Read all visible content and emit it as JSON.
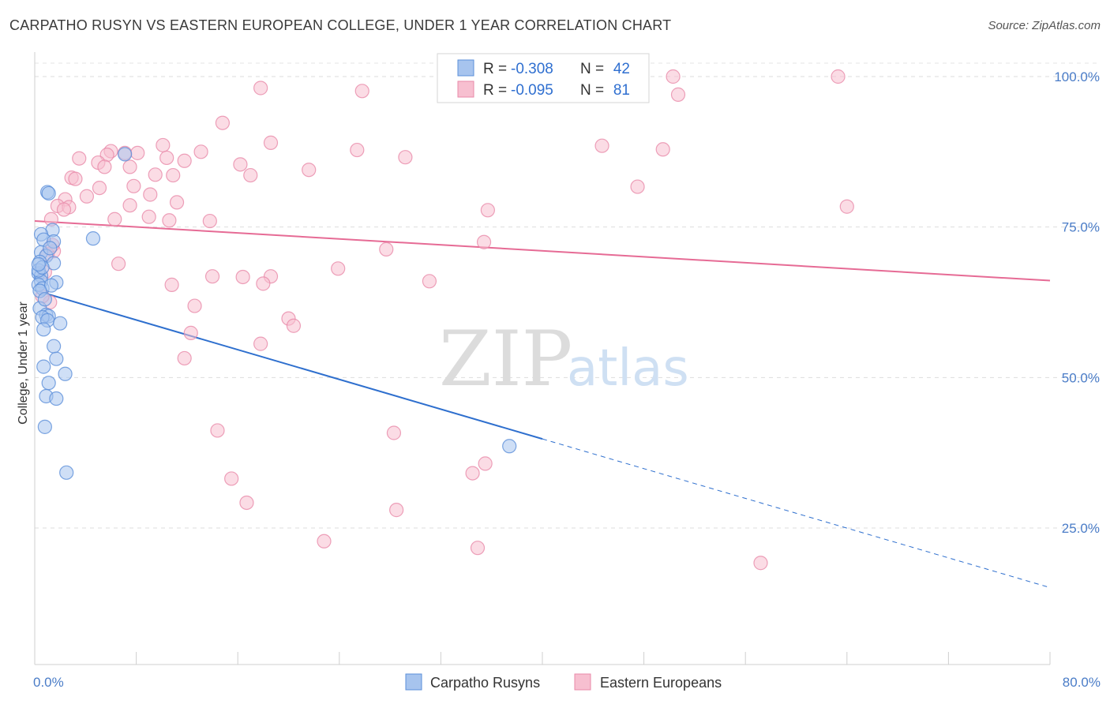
{
  "header": {
    "title": "CARPATHO RUSYN VS EASTERN EUROPEAN COLLEGE, UNDER 1 YEAR CORRELATION CHART",
    "source": "Source: ZipAtlas.com"
  },
  "watermark": {
    "zip": "ZIP",
    "atlas": "atlas"
  },
  "chart_data": {
    "type": "scatter",
    "title": "CARPATHO RUSYN VS EASTERN EUROPEAN COLLEGE, UNDER 1 YEAR CORRELATION CHART",
    "xlabel": "",
    "ylabel": "College, Under 1 year",
    "xlim": [
      0,
      80
    ],
    "ylim": [
      0,
      105
    ],
    "x_ticks": [
      {
        "value": 0,
        "label": "0.0%"
      },
      {
        "value": 80,
        "label": "80.0%"
      }
    ],
    "y_ticks": [
      {
        "value": 25,
        "label": "25.0%"
      },
      {
        "value": 50,
        "label": "50.0%"
      },
      {
        "value": 75,
        "label": "75.0%"
      },
      {
        "value": 100,
        "label": "100.0%"
      }
    ],
    "legend": {
      "position": "top-center",
      "entries": [
        {
          "name": "Carpatho Rusyns",
          "r_label": "R =",
          "r": "-0.308",
          "n_label": "N =",
          "n": "42"
        },
        {
          "name": "Eastern Europeans",
          "r_label": "R =",
          "r": "-0.095",
          "n_label": "N =",
          "n": "81"
        }
      ]
    },
    "colors": {
      "blue_fill": "#a7c4ee",
      "blue_stroke": "#5b8fd9",
      "blue_line": "#2e6fce",
      "pink_fill": "#f7bfd0",
      "pink_stroke": "#e98aa9",
      "pink_line": "#e66b95"
    },
    "series": [
      {
        "name": "Carpatho Rusyns",
        "trend": {
          "x0": 0,
          "y0": 64.5,
          "x1": 40,
          "y1": 39.8,
          "x_dash_end": 80
        },
        "points": [
          [
            7.1,
            87.1
          ],
          [
            1.0,
            80.8
          ],
          [
            1.1,
            80.6
          ],
          [
            4.6,
            73.1
          ],
          [
            1.4,
            74.5
          ],
          [
            0.5,
            73.8
          ],
          [
            0.7,
            72.9
          ],
          [
            1.5,
            72.6
          ],
          [
            0.5,
            70.8
          ],
          [
            0.9,
            70.2
          ],
          [
            0.4,
            69.2
          ],
          [
            1.5,
            69.0
          ],
          [
            0.3,
            67.3
          ],
          [
            0.5,
            66.9
          ],
          [
            0.5,
            66.0
          ],
          [
            1.7,
            65.8
          ],
          [
            0.3,
            65.4
          ],
          [
            0.6,
            64.8
          ],
          [
            1.3,
            65.3
          ],
          [
            0.4,
            61.5
          ],
          [
            0.9,
            60.4
          ],
          [
            1.1,
            60.2
          ],
          [
            0.6,
            60.0
          ],
          [
            1.0,
            59.5
          ],
          [
            2.0,
            59.0
          ],
          [
            0.7,
            58.0
          ],
          [
            1.5,
            55.2
          ],
          [
            1.7,
            53.1
          ],
          [
            0.7,
            51.8
          ],
          [
            2.4,
            50.6
          ],
          [
            1.1,
            49.1
          ],
          [
            0.9,
            46.9
          ],
          [
            1.7,
            46.5
          ],
          [
            0.8,
            41.8
          ],
          [
            2.5,
            34.2
          ],
          [
            37.4,
            38.6
          ],
          [
            0.3,
            67.8
          ],
          [
            0.6,
            68.3
          ],
          [
            0.3,
            68.8
          ],
          [
            1.2,
            71.5
          ],
          [
            0.4,
            64.4
          ],
          [
            0.8,
            63.0
          ]
        ]
      },
      {
        "name": "Eastern Europeans",
        "trend": {
          "x0": 0,
          "y0": 76.0,
          "x1": 80,
          "y1": 66.1
        },
        "points": [
          [
            33.6,
            100.0
          ],
          [
            50.3,
            100.0
          ],
          [
            63.3,
            100.0
          ],
          [
            17.8,
            98.1
          ],
          [
            25.8,
            97.6
          ],
          [
            50.7,
            97.0
          ],
          [
            14.8,
            92.3
          ],
          [
            18.6,
            89.0
          ],
          [
            10.1,
            88.6
          ],
          [
            44.7,
            88.5
          ],
          [
            7.1,
            87.3
          ],
          [
            8.1,
            87.3
          ],
          [
            6.0,
            87.6
          ],
          [
            5.7,
            87.0
          ],
          [
            13.1,
            87.5
          ],
          [
            25.4,
            87.8
          ],
          [
            49.5,
            87.9
          ],
          [
            3.5,
            86.4
          ],
          [
            10.4,
            86.5
          ],
          [
            29.2,
            86.6
          ],
          [
            11.8,
            86.0
          ],
          [
            5.0,
            85.7
          ],
          [
            16.2,
            85.4
          ],
          [
            5.5,
            85.0
          ],
          [
            7.5,
            85.0
          ],
          [
            21.6,
            84.5
          ],
          [
            9.5,
            83.7
          ],
          [
            10.9,
            83.6
          ],
          [
            17.0,
            83.6
          ],
          [
            2.9,
            83.2
          ],
          [
            3.2,
            83.0
          ],
          [
            7.8,
            81.8
          ],
          [
            5.1,
            81.5
          ],
          [
            47.5,
            81.7
          ],
          [
            9.1,
            80.4
          ],
          [
            4.1,
            80.1
          ],
          [
            2.4,
            79.6
          ],
          [
            11.2,
            79.1
          ],
          [
            7.5,
            78.6
          ],
          [
            1.8,
            78.5
          ],
          [
            2.7,
            78.3
          ],
          [
            35.7,
            77.8
          ],
          [
            64.0,
            78.4
          ],
          [
            2.3,
            77.9
          ],
          [
            9.0,
            76.7
          ],
          [
            1.3,
            76.3
          ],
          [
            6.3,
            76.3
          ],
          [
            10.6,
            76.1
          ],
          [
            13.8,
            76.0
          ],
          [
            35.4,
            72.5
          ],
          [
            27.7,
            71.3
          ],
          [
            1.5,
            71.0
          ],
          [
            1.0,
            70.5
          ],
          [
            6.6,
            68.9
          ],
          [
            23.9,
            68.1
          ],
          [
            14.0,
            66.8
          ],
          [
            16.4,
            66.7
          ],
          [
            18.6,
            66.8
          ],
          [
            31.1,
            66.0
          ],
          [
            10.8,
            65.4
          ],
          [
            18.0,
            65.6
          ],
          [
            12.6,
            61.9
          ],
          [
            20.0,
            59.8
          ],
          [
            20.4,
            58.6
          ],
          [
            12.3,
            57.4
          ],
          [
            17.8,
            55.6
          ],
          [
            11.8,
            53.2
          ],
          [
            14.4,
            41.2
          ],
          [
            28.3,
            40.8
          ],
          [
            35.5,
            35.7
          ],
          [
            15.5,
            33.2
          ],
          [
            34.5,
            34.1
          ],
          [
            16.7,
            29.2
          ],
          [
            28.5,
            28.0
          ],
          [
            22.8,
            22.8
          ],
          [
            34.9,
            21.7
          ],
          [
            57.2,
            19.2
          ],
          [
            1.2,
            62.5
          ],
          [
            0.6,
            63.5
          ],
          [
            0.8,
            67.5
          ],
          [
            1.4,
            72.0
          ]
        ]
      }
    ]
  },
  "bottom_legend": {
    "items": [
      {
        "label": "Carpatho Rusyns"
      },
      {
        "label": "Eastern Europeans"
      }
    ]
  }
}
